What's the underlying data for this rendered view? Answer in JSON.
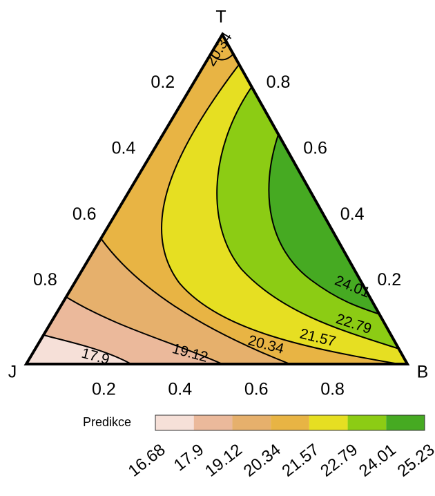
{
  "chart_data": {
    "type": "ternary-contour",
    "vertices": [
      "T",
      "J",
      "B"
    ],
    "t_ticks": [
      0.2,
      0.4,
      0.6,
      0.8
    ],
    "j_ticks": [
      0.2,
      0.4,
      0.6,
      0.8
    ],
    "b_ticks": [
      0.2,
      0.4,
      0.6,
      0.8
    ],
    "legend_title": "Predikce",
    "levels": [
      16.68,
      17.9,
      19.12,
      20.34,
      21.57,
      22.79,
      24.01,
      25.23
    ],
    "colors": [
      "#f6e0d8",
      "#ebb99b",
      "#e6b06c",
      "#e8b444",
      "#e6df22",
      "#8ccc14",
      "#46aa22"
    ],
    "contour_labels": [
      20.34,
      17.9,
      19.12,
      20.34,
      21.57,
      22.79,
      24.01
    ]
  }
}
